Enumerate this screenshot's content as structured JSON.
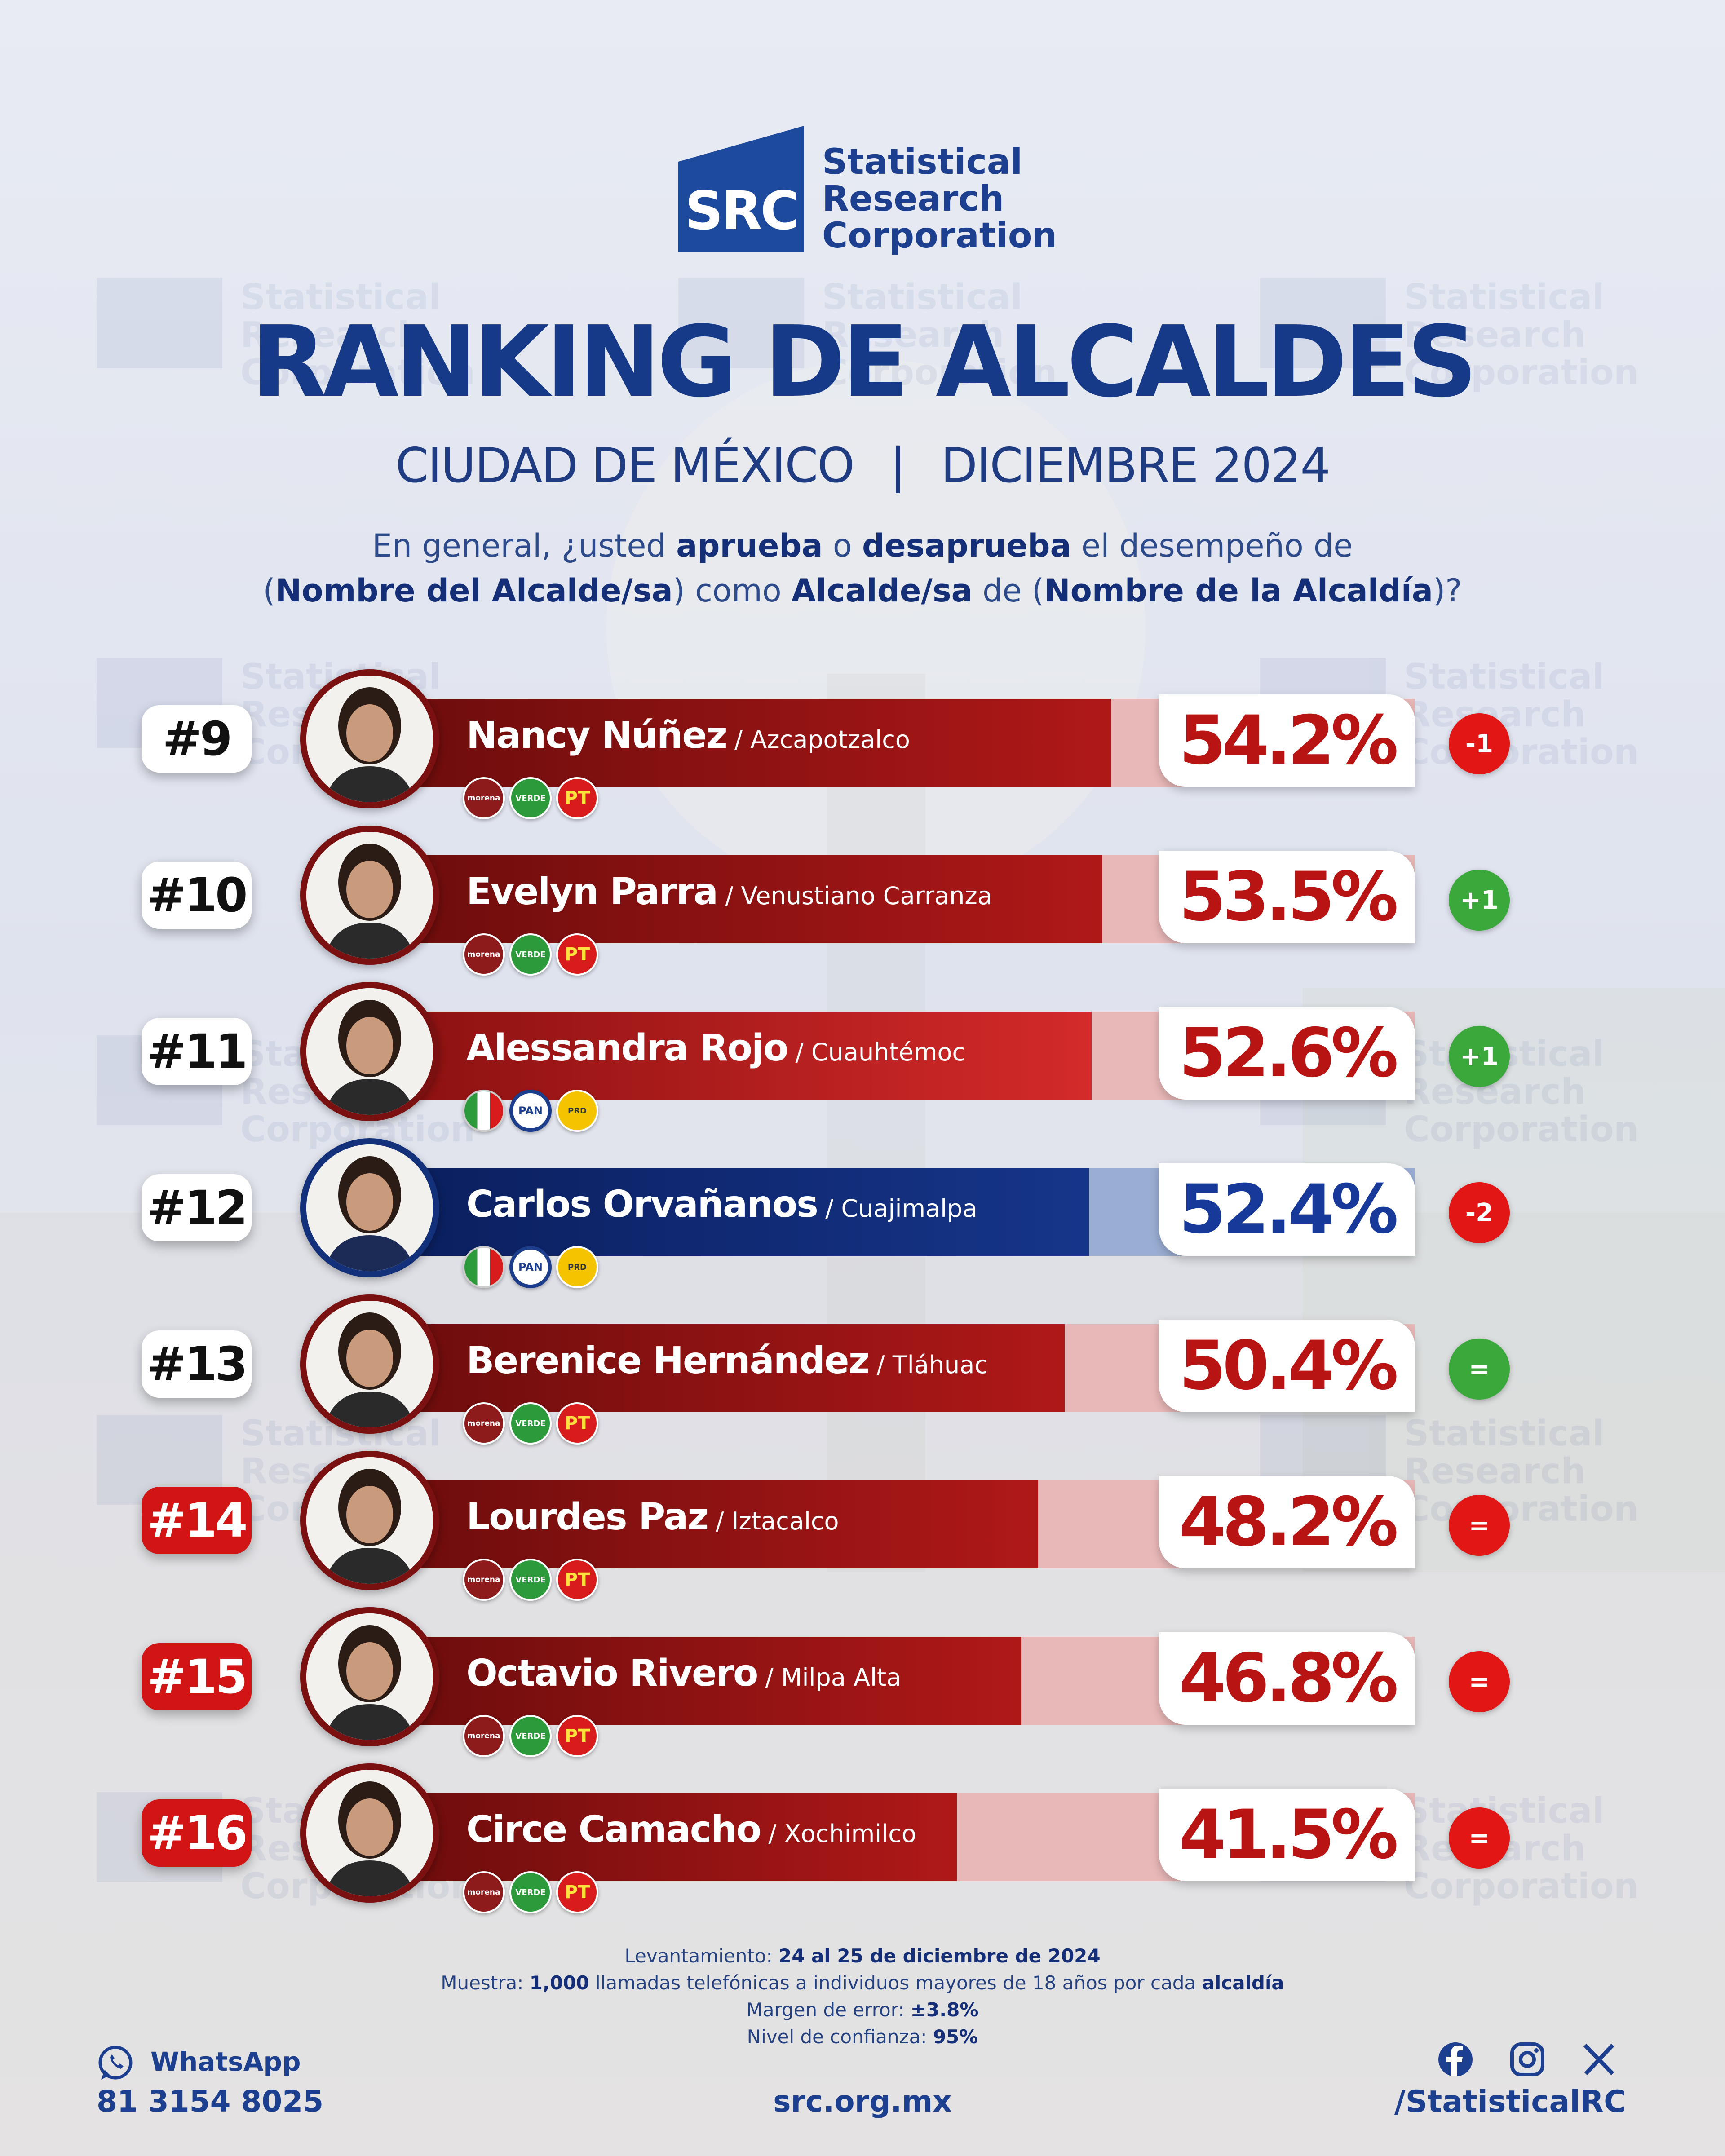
{
  "brand": {
    "logo_text": "SRC",
    "name_line1": "Statistical",
    "name_line2": "Research",
    "name_line3": "Corporation"
  },
  "header": {
    "title": "RANKING DE ALCALDES",
    "city": "CIUDAD DE MÉXICO",
    "separator": "|",
    "date": "DICIEMBRE 2024"
  },
  "question": {
    "p1": "En general, ¿usted ",
    "b1": "aprueba",
    "p2": " o ",
    "b2": "desaprueba",
    "p3": " el desempeño de",
    "p4": "(",
    "b3": "Nombre del Alcalde/sa",
    "p5": ") como ",
    "b4": "Alcalde/sa",
    "p6": " de (",
    "b5": "Nombre de la Alcaldía",
    "p7": ")?"
  },
  "rows": [
    {
      "rank": "#9",
      "name": "Nancy Núñez",
      "alcaldia": " / Azcapotzalco",
      "value": 54.2,
      "pct": "54.2%",
      "change": "-1",
      "change_color": "#e31616",
      "rank_style": "white",
      "color": "red",
      "parties": [
        "morena",
        "VERDE",
        "PT"
      ]
    },
    {
      "rank": "#10",
      "name": "Evelyn Parra",
      "alcaldia": " / Venustiano Carranza",
      "value": 53.5,
      "pct": "53.5%",
      "change": "+1",
      "change_color": "#3aa83a",
      "rank_style": "white",
      "color": "red",
      "parties": [
        "morena",
        "VERDE",
        "PT"
      ]
    },
    {
      "rank": "#11",
      "name": "Alessandra Rojo",
      "alcaldia": " / Cuauhtémoc",
      "value": 52.6,
      "pct": "52.6%",
      "change": "+1",
      "change_color": "#3aa83a",
      "rank_style": "white",
      "color": "bright",
      "parties": [
        "PRI",
        "PAN",
        "PRD"
      ]
    },
    {
      "rank": "#12",
      "name": "Carlos Orvañanos",
      "alcaldia": " / Cuajimalpa",
      "value": 52.4,
      "pct": "52.4%",
      "change": "-2",
      "change_color": "#e31616",
      "rank_style": "white",
      "color": "blue",
      "parties": [
        "PRI",
        "PAN",
        "PRD"
      ]
    },
    {
      "rank": "#13",
      "name": "Berenice Hernández",
      "alcaldia": " / Tláhuac",
      "value": 50.4,
      "pct": "50.4%",
      "change": "=",
      "change_color": "#3aa83a",
      "rank_style": "white",
      "color": "red",
      "parties": [
        "morena",
        "VERDE",
        "PT"
      ]
    },
    {
      "rank": "#14",
      "name": "Lourdes Paz",
      "alcaldia": " / Iztacalco",
      "value": 48.2,
      "pct": "48.2%",
      "change": "=",
      "change_color": "#e31616",
      "rank_style": "red",
      "color": "red",
      "parties": [
        "morena",
        "VERDE",
        "PT"
      ]
    },
    {
      "rank": "#15",
      "name": "Octavio Rivero",
      "alcaldia": " / Milpa Alta",
      "value": 46.8,
      "pct": "46.8%",
      "change": "=",
      "change_color": "#e31616",
      "rank_style": "red",
      "color": "red",
      "parties": [
        "morena",
        "VERDE",
        "PT"
      ]
    },
    {
      "rank": "#16",
      "name": "Circe Camacho",
      "alcaldia": " / Xochimilco",
      "value": 41.5,
      "pct": "41.5%",
      "change": "=",
      "change_color": "#e31616",
      "rank_style": "red",
      "color": "red",
      "parties": [
        "morena",
        "VERDE",
        "PT"
      ]
    }
  ],
  "methodology": {
    "l1_label": "Levantamiento: ",
    "l1_value": "24 al 25 de diciembre de 2024",
    "l2_label": "Muestra: ",
    "l2_bold": "1,000",
    "l2_rest": " llamadas telefónicas a individuos mayores de 18 años por cada ",
    "l2_bold2": "alcaldía",
    "l3_label": "Margen de error: ",
    "l3_value": "±3.8%",
    "l4_label": "Nivel de confianza: ",
    "l4_value": "95%"
  },
  "footer": {
    "whatsapp_label": "WhatsApp",
    "whatsapp_number": "81 3154 8025",
    "website": "src.org.mx",
    "social_handle": "/StatisticalRC"
  },
  "icons": {
    "whatsapp": "whatsapp-icon",
    "facebook": "facebook-icon",
    "instagram": "instagram-icon",
    "x": "x-icon"
  },
  "colors": {
    "brand_blue": "#173a88",
    "red": "#b81414",
    "green": "#3aa83a"
  }
}
